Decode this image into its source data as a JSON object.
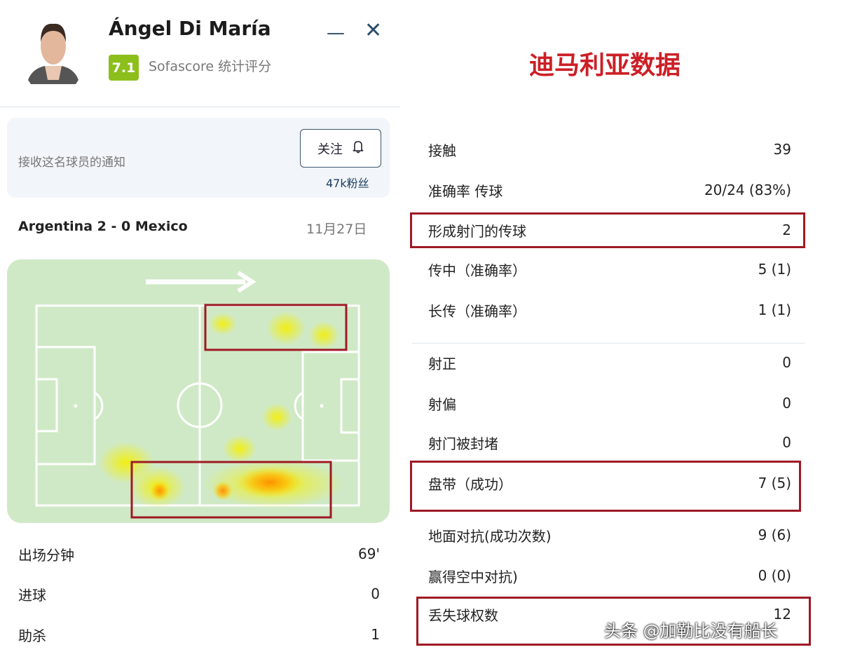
{
  "player": {
    "name": "Ángel Di María",
    "rating": "7.1",
    "rating_source": "Sofascore 统计评分",
    "rating_color": "#8cbf1c"
  },
  "window": {
    "minimize_icon": "minus-icon",
    "close_icon": "close-icon"
  },
  "notify": {
    "text": "接收这名球员的通知",
    "follow_label": "关注",
    "followers": "47k粉丝"
  },
  "match": {
    "title": "Argentina 2 - 0 Mexico",
    "date": "11月27日"
  },
  "left_stats": [
    {
      "label": "出场分钟",
      "value": "69'"
    },
    {
      "label": "进球",
      "value": "0"
    },
    {
      "label": "助杀",
      "value": "1"
    }
  ],
  "right": {
    "title": "迪马利亚数据",
    "title_color": "#cc1f26"
  },
  "right_stats": [
    {
      "label": "接触",
      "value": "39"
    },
    {
      "label": "准确率 传球",
      "value": "20/24 (83%)"
    },
    {
      "label": "形成射门的传球",
      "value": "2"
    },
    {
      "label": "传中（准确率）",
      "value": "5 (1)"
    },
    {
      "label": "长传（准确率）",
      "value": "1 (1)"
    },
    {
      "label": "射正",
      "value": "0"
    },
    {
      "label": "射偏",
      "value": "0"
    },
    {
      "label": "射门被封堵",
      "value": "0"
    },
    {
      "label": "盘带（成功）",
      "value": "7 (5)"
    },
    {
      "label": "地面对抗(成功次数)",
      "value": "9 (6)"
    },
    {
      "label": "赢得空中对抗)",
      "value": "0 (0)"
    },
    {
      "label": "丢失球权数",
      "value": "12"
    }
  ],
  "watermark": "头条 @加勒比没有船长",
  "highlight_color": "#9e1a24"
}
